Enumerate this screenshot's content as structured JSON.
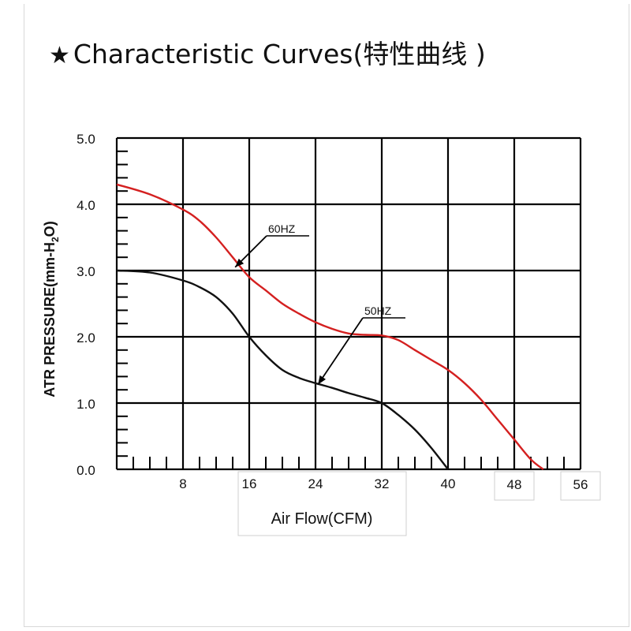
{
  "title": {
    "star": "★",
    "text": "Characteristic Curves(特性曲线 )"
  },
  "chart_data": {
    "type": "line",
    "xlabel": "Air Flow(CFM)",
    "ylabel": "ATR PRESSURE(mm-H2O)",
    "ylabel_parts": {
      "main": "ATR PRESSURE(mm-H",
      "sub": "2",
      "end": "O)"
    },
    "xlim": [
      0,
      56
    ],
    "ylim": [
      0,
      5
    ],
    "x_ticks": [
      "8",
      "16",
      "24",
      "32",
      "40",
      "48",
      "56"
    ],
    "y_ticks": [
      "0.0",
      "1.0",
      "2.0",
      "3.0",
      "4.0",
      "5.0"
    ],
    "grid": true,
    "series": [
      {
        "name": "60HZ",
        "color": "#d42020",
        "points": [
          [
            0,
            4.3
          ],
          [
            4,
            4.15
          ],
          [
            8,
            3.92
          ],
          [
            10,
            3.75
          ],
          [
            12,
            3.5
          ],
          [
            14,
            3.2
          ],
          [
            16,
            2.9
          ],
          [
            18,
            2.7
          ],
          [
            20,
            2.5
          ],
          [
            22,
            2.35
          ],
          [
            24,
            2.22
          ],
          [
            26,
            2.12
          ],
          [
            28,
            2.05
          ],
          [
            30,
            2.03
          ],
          [
            32,
            2.02
          ],
          [
            34,
            1.95
          ],
          [
            36,
            1.8
          ],
          [
            38,
            1.65
          ],
          [
            40,
            1.5
          ],
          [
            42,
            1.3
          ],
          [
            44,
            1.05
          ],
          [
            46,
            0.75
          ],
          [
            48,
            0.45
          ],
          [
            50,
            0.15
          ],
          [
            51.5,
            0.0
          ]
        ]
      },
      {
        "name": "50HZ",
        "color": "#111111",
        "points": [
          [
            0,
            3.0
          ],
          [
            4,
            2.97
          ],
          [
            8,
            2.85
          ],
          [
            10,
            2.75
          ],
          [
            12,
            2.6
          ],
          [
            14,
            2.35
          ],
          [
            16,
            2.0
          ],
          [
            18,
            1.72
          ],
          [
            20,
            1.5
          ],
          [
            22,
            1.38
          ],
          [
            24,
            1.3
          ],
          [
            26,
            1.23
          ],
          [
            28,
            1.15
          ],
          [
            30,
            1.08
          ],
          [
            32,
            1.0
          ],
          [
            34,
            0.82
          ],
          [
            36,
            0.6
          ],
          [
            38,
            0.32
          ],
          [
            40,
            0.0
          ]
        ]
      }
    ],
    "annotations": [
      {
        "text": "60HZ"
      },
      {
        "text": "50HZ"
      }
    ]
  }
}
